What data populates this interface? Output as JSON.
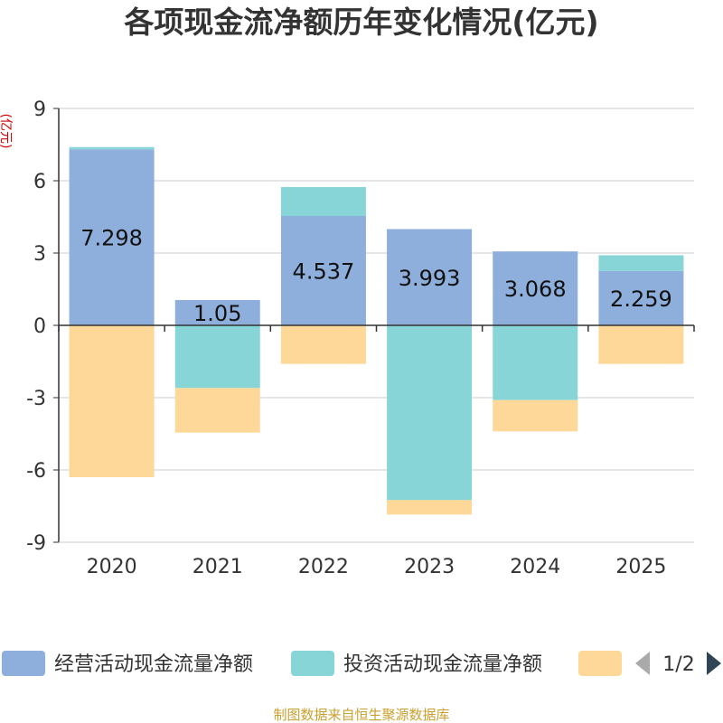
{
  "chart_data": {
    "type": "bar",
    "stacked": true,
    "title": "各项现金流净额历年变化情况(亿元)",
    "ylabel": "(亿元)",
    "categories": [
      "2020",
      "2021",
      "2022",
      "2023",
      "2024",
      "2025"
    ],
    "ylim": [
      -9,
      9
    ],
    "yticks": [
      9,
      6,
      3,
      0,
      -3,
      -6,
      -9
    ],
    "series": [
      {
        "name": "经营活动现金流量净额",
        "color": "#8eaedb",
        "values": [
          7.298,
          1.05,
          4.537,
          3.993,
          3.068,
          2.259
        ],
        "labels": [
          "7.298",
          "1.05",
          "4.537",
          "3.993",
          "3.068",
          "2.259"
        ]
      },
      {
        "name": "投资活动现金流量净额",
        "color": "#88d5d8",
        "values": [
          0.1,
          -2.6,
          1.2,
          -7.25,
          -3.1,
          0.65
        ]
      },
      {
        "name": "",
        "color": "#fdd898",
        "values": [
          -6.3,
          -1.85,
          -1.6,
          -0.6,
          -1.3,
          -1.6
        ]
      }
    ],
    "legend": {
      "page": "1/2"
    },
    "source": "制图数据来自恒生聚源数据库"
  }
}
